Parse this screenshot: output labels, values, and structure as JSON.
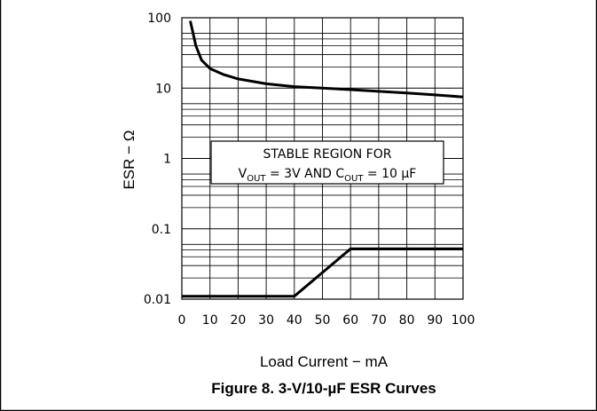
{
  "chart_data": {
    "type": "line",
    "title": "",
    "caption": "Figure 8. 3-V/10-µF ESR Curves",
    "xlabel": "Load Current − mA",
    "ylabel": "ESR − Ω",
    "xlim": [
      0,
      100
    ],
    "ylim": [
      0.01,
      100
    ],
    "yscale": "log",
    "grid": true,
    "x_ticks": [
      "0",
      "10",
      "20",
      "30",
      "40",
      "50",
      "60",
      "70",
      "80",
      "90",
      "100"
    ],
    "y_ticks": [
      "100",
      "10",
      "1",
      "0.1",
      "0.01"
    ],
    "annotation": {
      "line1": "STABLE REGION FOR",
      "v_main": "V",
      "v_sub": "OUT",
      "v_rest": " = 3V AND C",
      "c_sub": "OUT",
      "c_rest": " = 10 µF"
    },
    "series": [
      {
        "name": "",
        "x": [
          3,
          5,
          7,
          10,
          15,
          20,
          30,
          40,
          50,
          60,
          70,
          80,
          90,
          100
        ],
        "y": [
          90,
          40,
          25,
          19,
          15.5,
          13.5,
          11.5,
          10.5,
          10,
          9.5,
          9,
          8.5,
          8,
          7.5
        ]
      },
      {
        "name": "",
        "x": [
          0,
          40,
          60,
          100
        ],
        "y": [
          0.011,
          0.011,
          0.052,
          0.052
        ]
      }
    ]
  },
  "colors": {
    "line": "#000000",
    "grid": "#000000",
    "background": "#ffffff"
  }
}
